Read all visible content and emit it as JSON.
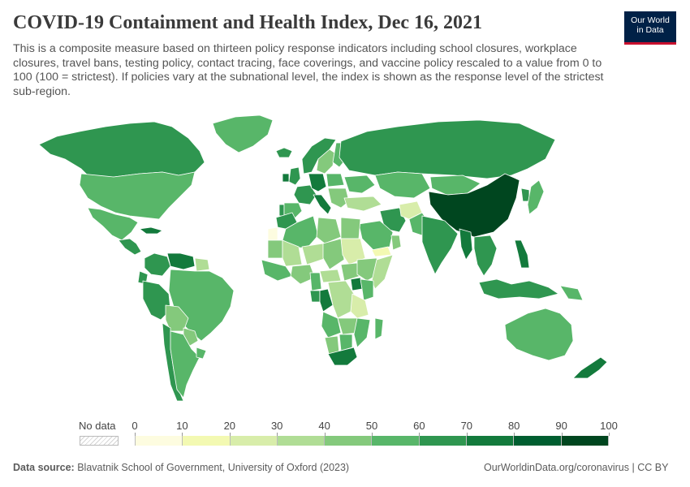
{
  "header": {
    "title": "COVID-19 Containment and Health Index, Dec 16, 2021",
    "subtitle": "This is a composite measure based on thirteen policy response indicators including school closures, workplace closures, travel bans, testing policy, contact tracing, face coverings, and vaccine policy rescaled to a value from 0 to 100 (100 = strictest). If policies vary at the subnational level, the index is shown as the response level of the strictest sub-region."
  },
  "logo": {
    "line1": "Our World",
    "line2": "in Data"
  },
  "legend": {
    "no_data_label": "No data",
    "ticks": [
      "0",
      "10",
      "20",
      "30",
      "40",
      "50",
      "60",
      "70",
      "80",
      "90",
      "100"
    ],
    "bin_colors": [
      "#fdfce0",
      "#f3f9b2",
      "#d8edaa",
      "#b0dd95",
      "#84c97c",
      "#58b669",
      "#2f9650",
      "#137a3c",
      "#005e30",
      "#00461f"
    ]
  },
  "chart_data": {
    "type": "choropleth",
    "title": "COVID-19 Containment and Health Index, Dec 16, 2021",
    "scale_min": 0,
    "scale_max": 100,
    "regions": [
      {
        "name": "Canada",
        "value": 68
      },
      {
        "name": "Greenland",
        "value": 55
      },
      {
        "name": "United States",
        "value": 55
      },
      {
        "name": "Mexico",
        "value": 52
      },
      {
        "name": "Central America",
        "value": 62
      },
      {
        "name": "Cuba",
        "value": 72
      },
      {
        "name": "Venezuela",
        "value": 78
      },
      {
        "name": "Colombia",
        "value": 60
      },
      {
        "name": "Ecuador",
        "value": 67
      },
      {
        "name": "Peru",
        "value": 68
      },
      {
        "name": "Brazil",
        "value": 56
      },
      {
        "name": "Bolivia",
        "value": 47
      },
      {
        "name": "Paraguay",
        "value": 45
      },
      {
        "name": "Chile",
        "value": 66
      },
      {
        "name": "Argentina",
        "value": 58
      },
      {
        "name": "Uruguay",
        "value": 52
      },
      {
        "name": "Guyana",
        "value": 38
      },
      {
        "name": "Iceland",
        "value": 66
      },
      {
        "name": "United Kingdom",
        "value": 60
      },
      {
        "name": "Ireland",
        "value": 70
      },
      {
        "name": "Norway",
        "value": 62
      },
      {
        "name": "Sweden",
        "value": 42
      },
      {
        "name": "Finland",
        "value": 52
      },
      {
        "name": "France",
        "value": 66
      },
      {
        "name": "Spain",
        "value": 58
      },
      {
        "name": "Portugal",
        "value": 60
      },
      {
        "name": "Germany",
        "value": 70
      },
      {
        "name": "Italy",
        "value": 72
      },
      {
        "name": "Poland",
        "value": 55
      },
      {
        "name": "Ukraine",
        "value": 58
      },
      {
        "name": "Balkans",
        "value": 45
      },
      {
        "name": "Turkey",
        "value": 38
      },
      {
        "name": "Russia",
        "value": 64
      },
      {
        "name": "Kazakhstan",
        "value": 57
      },
      {
        "name": "Mongolia",
        "value": 55
      },
      {
        "name": "China",
        "value": 90
      },
      {
        "name": "Korea",
        "value": 65
      },
      {
        "name": "Japan",
        "value": 55
      },
      {
        "name": "Iran",
        "value": 66
      },
      {
        "name": "Afghanistan",
        "value": 28
      },
      {
        "name": "Pakistan",
        "value": 58
      },
      {
        "name": "India",
        "value": 68
      },
      {
        "name": "Myanmar",
        "value": 72
      },
      {
        "name": "Southeast Asia",
        "value": 68
      },
      {
        "name": "Philippines",
        "value": 78
      },
      {
        "name": "Indonesia",
        "value": 66
      },
      {
        "name": "Papua New Guinea",
        "value": 52
      },
      {
        "name": "Saudi Arabia",
        "value": 50
      },
      {
        "name": "Yemen",
        "value": 18
      },
      {
        "name": "Oman",
        "value": 48
      },
      {
        "name": "Australia",
        "value": 56
      },
      {
        "name": "New Zealand",
        "value": 70
      },
      {
        "name": "Morocco",
        "value": 66
      },
      {
        "name": "Algeria",
        "value": 50
      },
      {
        "name": "Libya",
        "value": 42
      },
      {
        "name": "Egypt",
        "value": 48
      },
      {
        "name": "Western Sahara",
        "value": 0
      },
      {
        "name": "Mauritania",
        "value": 42
      },
      {
        "name": "Mali",
        "value": 38
      },
      {
        "name": "Niger",
        "value": 35
      },
      {
        "name": "Chad",
        "value": 48
      },
      {
        "name": "Sudan",
        "value": 22
      },
      {
        "name": "South Sudan",
        "value": 40
      },
      {
        "name": "Ethiopia",
        "value": 46
      },
      {
        "name": "Somalia",
        "value": 38
      },
      {
        "name": "West Africa",
        "value": 55
      },
      {
        "name": "Nigeria",
        "value": 42
      },
      {
        "name": "Central African Republic",
        "value": 35
      },
      {
        "name": "Cameroon",
        "value": 52
      },
      {
        "name": "Gabon",
        "value": 62
      },
      {
        "name": "Congo",
        "value": 72
      },
      {
        "name": "DR Congo",
        "value": 38
      },
      {
        "name": "Uganda",
        "value": 78
      },
      {
        "name": "Kenya",
        "value": 50
      },
      {
        "name": "Tanzania",
        "value": 24
      },
      {
        "name": "Angola",
        "value": 58
      },
      {
        "name": "Zambia",
        "value": 45
      },
      {
        "name": "Mozambique",
        "value": 55
      },
      {
        "name": "Namibia",
        "value": 48
      },
      {
        "name": "Botswana",
        "value": 55
      },
      {
        "name": "South Africa",
        "value": 70
      },
      {
        "name": "Madagascar",
        "value": 55
      }
    ]
  },
  "footer": {
    "source_label": "Data source:",
    "source_text": "Blavatnik School of Government, University of Oxford (2023)",
    "link_text": "OurWorldinData.org/coronavirus",
    "separator": " | ",
    "license": "CC BY"
  }
}
